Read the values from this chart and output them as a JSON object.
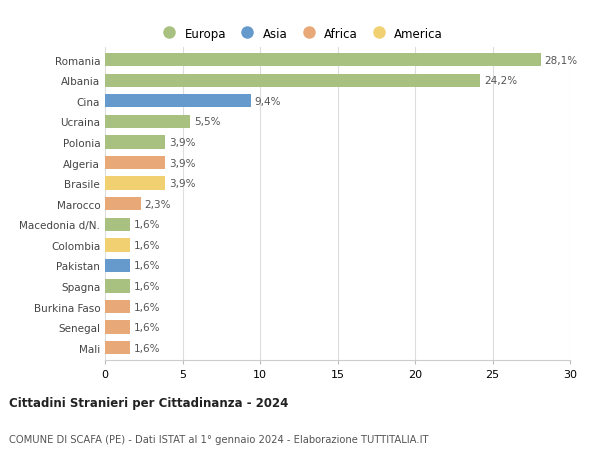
{
  "categories": [
    "Romania",
    "Albania",
    "Cina",
    "Ucraina",
    "Polonia",
    "Algeria",
    "Brasile",
    "Marocco",
    "Macedonia d/N.",
    "Colombia",
    "Pakistan",
    "Spagna",
    "Burkina Faso",
    "Senegal",
    "Mali"
  ],
  "values": [
    28.1,
    24.2,
    9.4,
    5.5,
    3.9,
    3.9,
    3.9,
    2.3,
    1.6,
    1.6,
    1.6,
    1.6,
    1.6,
    1.6,
    1.6
  ],
  "labels": [
    "28,1%",
    "24,2%",
    "9,4%",
    "5,5%",
    "3,9%",
    "3,9%",
    "3,9%",
    "2,3%",
    "1,6%",
    "1,6%",
    "1,6%",
    "1,6%",
    "1,6%",
    "1,6%",
    "1,6%"
  ],
  "continents": [
    "Europa",
    "Europa",
    "Asia",
    "Europa",
    "Europa",
    "Africa",
    "America",
    "Africa",
    "Europa",
    "America",
    "Asia",
    "Europa",
    "Africa",
    "Africa",
    "Africa"
  ],
  "colors": {
    "Europa": "#a8c080",
    "Asia": "#6699cc",
    "Africa": "#e8a878",
    "America": "#f0d070"
  },
  "legend_order": [
    "Europa",
    "Asia",
    "Africa",
    "America"
  ],
  "title": "Cittadini Stranieri per Cittadinanza - 2024",
  "subtitle": "COMUNE DI SCAFA (PE) - Dati ISTAT al 1° gennaio 2024 - Elaborazione TUTTITALIA.IT",
  "xlim": [
    0,
    30
  ],
  "xticks": [
    0,
    5,
    10,
    15,
    20,
    25,
    30
  ],
  "background_color": "#ffffff",
  "grid_color": "#dddddd"
}
